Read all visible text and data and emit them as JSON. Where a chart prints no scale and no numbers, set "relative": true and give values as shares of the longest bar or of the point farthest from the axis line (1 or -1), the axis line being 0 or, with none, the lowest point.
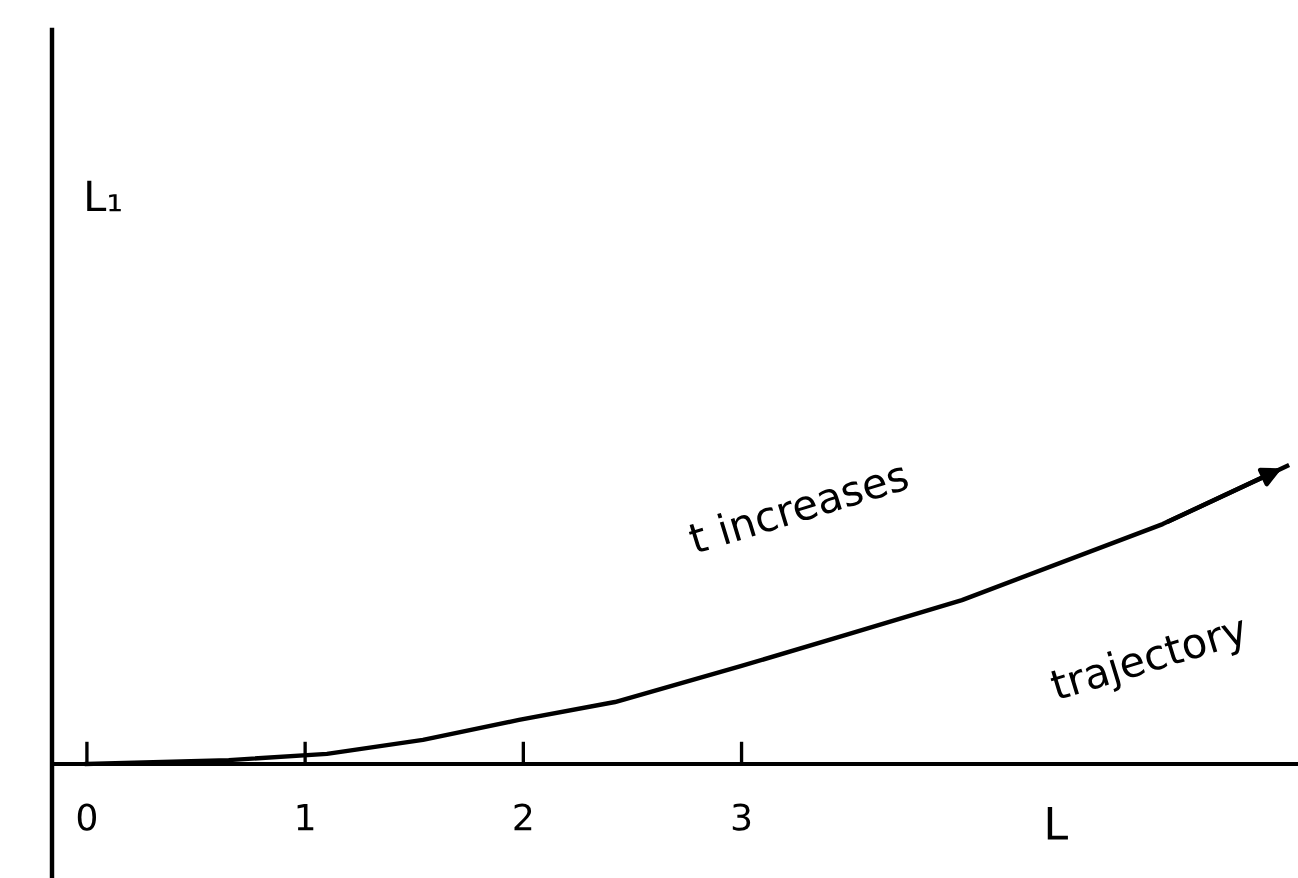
{
  "chart_data": {
    "type": "line",
    "xlabel": "L",
    "relative": true,
    "x": [
      0,
      0.65,
      1.1,
      1.54,
      1.98,
      2.42,
      3.0,
      3.49,
      4.01,
      4.93,
      5.5
    ],
    "series": [
      {
        "color": "#000000",
        "values": [
          0,
          0.013,
          0.034,
          0.081,
          0.148,
          0.208,
          0.329,
          0.436,
          0.55,
          0.805,
          1.0
        ]
      }
    ],
    "xlim": [
      -0.16,
      5.55
    ],
    "xticks": [
      0,
      1,
      2,
      3
    ],
    "grid": false,
    "annotations": [
      "L₁",
      "t increases",
      "trajectory"
    ]
  }
}
